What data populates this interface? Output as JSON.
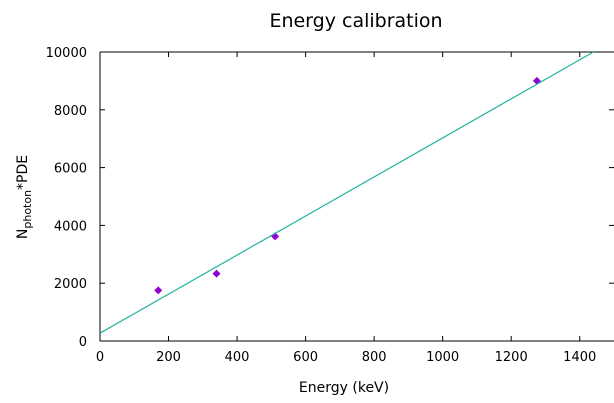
{
  "chart_data": {
    "type": "scatter",
    "title": "Energy calibration",
    "xlabel": "Energy (keV)",
    "ylabel": {
      "base": "N",
      "subscript": "photon",
      "suffix": "*PDE"
    },
    "xlim": [
      0,
      1500
    ],
    "ylim": [
      0,
      10000
    ],
    "xticks": [
      0,
      200,
      400,
      600,
      800,
      1000,
      1200,
      1400
    ],
    "yticks": [
      0,
      2000,
      4000,
      6000,
      8000,
      10000
    ],
    "grid": false,
    "series": [
      {
        "type": "scatter",
        "color": "#9400d3",
        "marker": "diamond",
        "points": [
          {
            "x": 170,
            "y": 1750
          },
          {
            "x": 340,
            "y": 2330
          },
          {
            "x": 511,
            "y": 3620
          },
          {
            "x": 1275,
            "y": 9000
          }
        ]
      },
      {
        "type": "line",
        "color": "#20b2a0",
        "points": [
          {
            "x": 0,
            "y": 270
          },
          {
            "x": 1440,
            "y": 10000
          }
        ]
      }
    ]
  }
}
